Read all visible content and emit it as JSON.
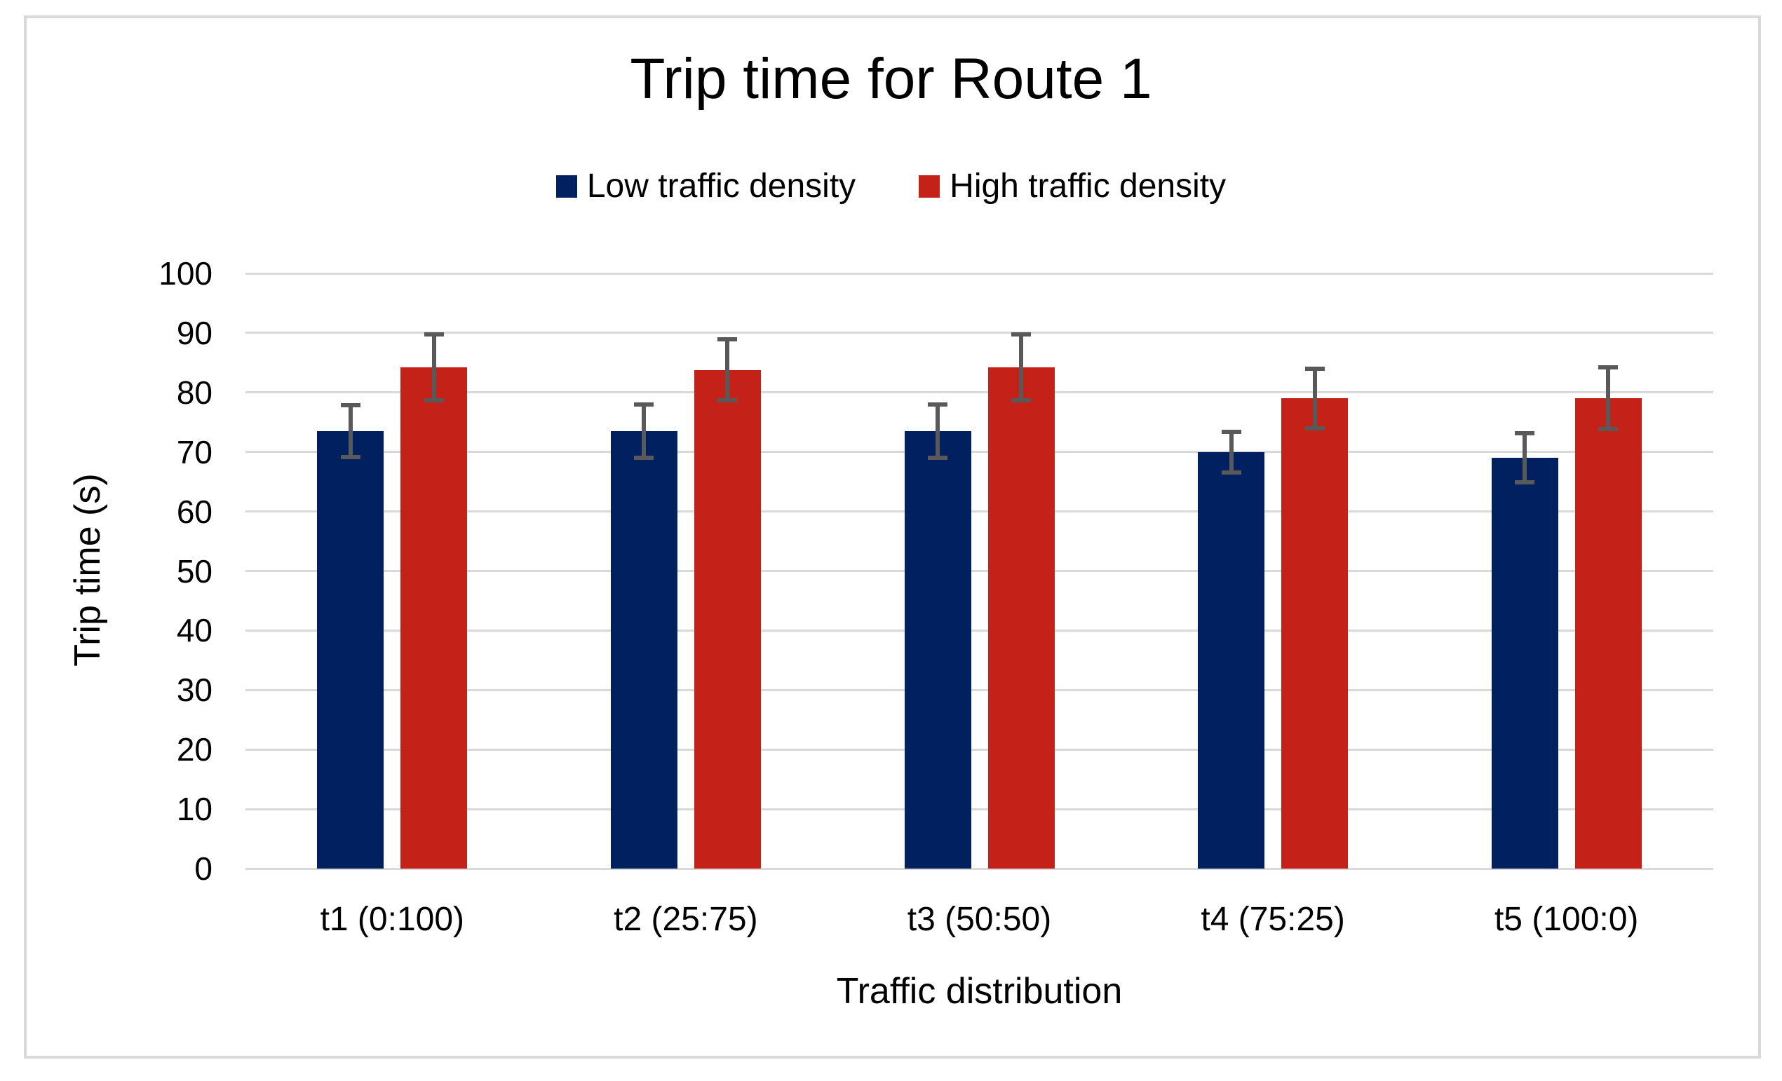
{
  "chart_data": {
    "type": "bar",
    "title": "Trip time for Route 1",
    "xlabel": "Traffic distribution",
    "ylabel": "Trip time (s)",
    "categories": [
      "t1 (0:100)",
      "t2 (25:75)",
      "t3 (50:50)",
      "t4 (75:25)",
      "t5 (100:0)"
    ],
    "series": [
      {
        "name": "Low traffic density",
        "color": "#002060",
        "values": [
          73.5,
          73.5,
          73.5,
          70,
          69
        ],
        "errors": [
          4.4,
          4.5,
          4.5,
          3.4,
          4.1
        ]
      },
      {
        "name": "High traffic density",
        "color": "#C42119",
        "values": [
          84.2,
          83.8,
          84.2,
          79,
          79
        ],
        "errors": [
          5.5,
          5.1,
          5.5,
          5.0,
          5.2
        ]
      }
    ],
    "ylim": [
      0,
      100
    ],
    "ytick_step": 10,
    "grid": "horizontal",
    "legend_position": "top",
    "gridline_color": "#D9D9D9",
    "error_bar_color": "#595959",
    "frame_border_color": "#D9D9D9",
    "text_color": "#000000"
  }
}
